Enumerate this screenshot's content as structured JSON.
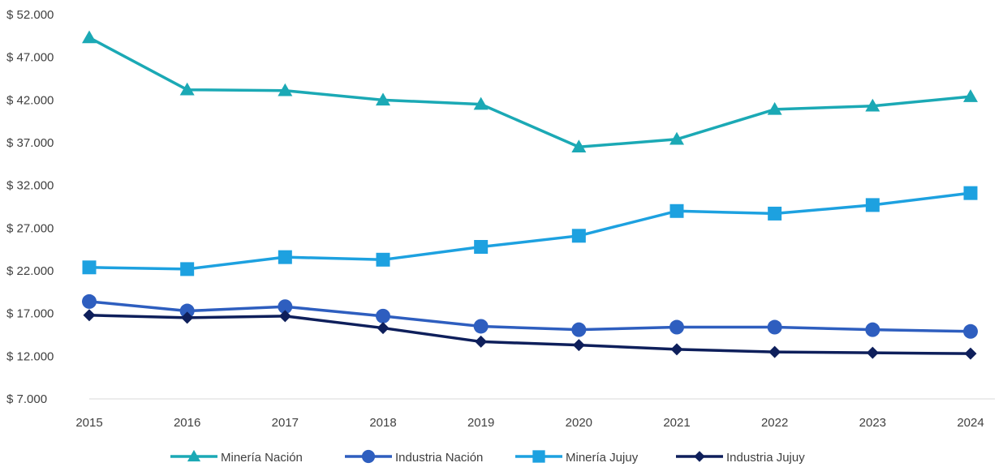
{
  "chart_data": {
    "type": "line",
    "title": "",
    "xlabel": "",
    "ylabel": "",
    "x": [
      "2015",
      "2016",
      "2017",
      "2018",
      "2019",
      "2020",
      "2021",
      "2022",
      "2023",
      "2024"
    ],
    "ylim": [
      7000,
      52000
    ],
    "y_ticks": [
      7000,
      12000,
      17000,
      22000,
      27000,
      32000,
      37000,
      42000,
      47000,
      52000
    ],
    "y_tick_labels": [
      "$ 7.000",
      "$ 12.000",
      "$ 17.000",
      "$ 22.000",
      "$ 27.000",
      "$ 32.000",
      "$ 37.000",
      "$ 42.000",
      "$ 47.000",
      "$ 52.000"
    ],
    "grid": false,
    "legend_position": "bottom",
    "series": [
      {
        "name": "Minería Nación",
        "marker": "triangle",
        "color": "#1BA9B5",
        "values": [
          49300,
          43200,
          43100,
          42000,
          41500,
          36500,
          37400,
          40900,
          41300,
          42400
        ]
      },
      {
        "name": "Industria Nación",
        "marker": "circle",
        "color": "#2E5EBF",
        "values": [
          18400,
          17300,
          17800,
          16700,
          15500,
          15100,
          15400,
          15400,
          15100,
          14900
        ]
      },
      {
        "name": "Minería Jujuy",
        "marker": "square",
        "color": "#1DA1E0",
        "values": [
          22400,
          22200,
          23600,
          23300,
          24800,
          26100,
          29000,
          28700,
          29700,
          31100
        ]
      },
      {
        "name": "Industria Jujuy",
        "marker": "diamond",
        "color": "#0E1F5B",
        "values": [
          16800,
          16500,
          16700,
          15300,
          13700,
          13300,
          12800,
          12500,
          12400,
          12300
        ]
      }
    ]
  }
}
